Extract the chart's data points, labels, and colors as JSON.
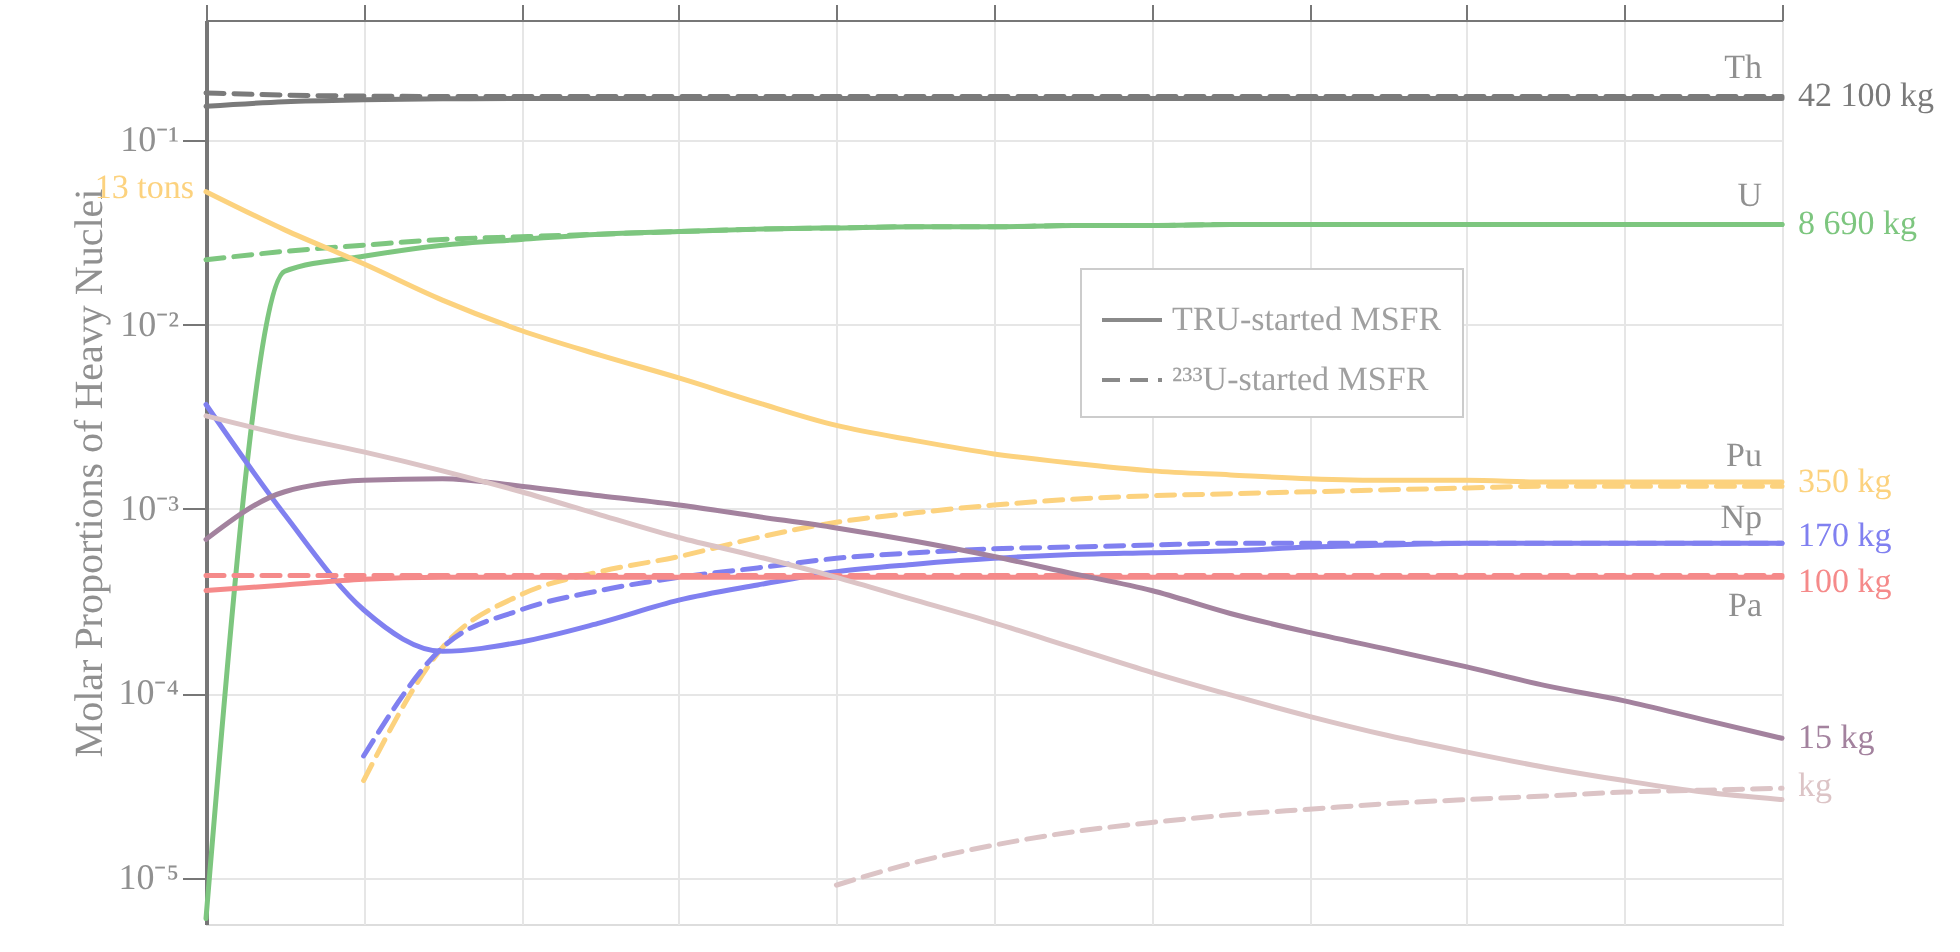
{
  "chart_data": {
    "type": "line",
    "ylabel": "Molar Proportions of Heavy Nuclei",
    "categories": [
      null,
      null,
      null,
      null,
      null,
      null,
      null,
      null,
      null,
      null,
      null,
      null,
      null,
      null,
      null,
      null,
      null,
      null,
      null,
      null,
      null
    ],
    "ylim": [
      5.6e-06,
      0.45
    ],
    "log": "y",
    "yticks": [
      {
        "value": 0.1,
        "label": "10⁻¹"
      },
      {
        "value": 0.01,
        "label": "10⁻²"
      },
      {
        "value": 0.001,
        "label": "10⁻³"
      },
      {
        "value": 0.0001,
        "label": "10⁻⁴"
      },
      {
        "value": 1e-05,
        "label": "10⁻⁵"
      }
    ],
    "tick_labels": "y",
    "grid": true,
    "legend": "right",
    "marker": "none",
    "series": [
      {
        "name": "TRU-started MSFR",
        "color": "#7a7a7a",
        "line_style": "solid",
        "values": [
          0.153,
          0.162,
          0.166,
          0.168,
          0.169,
          0.169,
          0.169,
          0.169,
          0.169,
          0.169,
          0.169,
          0.169,
          0.169,
          0.169,
          0.169,
          0.169,
          0.169,
          0.169,
          0.169,
          0.169,
          0.169
        ]
      },
      {
        "name": "²³³U-started MSFR",
        "color": "#7a7a7a",
        "line_style": "dashed",
        "values": [
          0.181,
          0.176,
          0.174,
          0.173,
          0.173,
          0.173,
          0.173,
          0.173,
          0.173,
          0.173,
          0.173,
          0.173,
          0.173,
          0.173,
          0.173,
          0.173,
          0.173,
          0.173,
          0.173,
          0.173,
          0.173
        ]
      },
      {
        "color": "#7dc67f",
        "line_style": "solid",
        "values": [
          6e-06,
          0.0195,
          0.0235,
          0.027,
          0.029,
          0.031,
          0.032,
          0.033,
          0.0335,
          0.034,
          0.034,
          0.0345,
          0.0345,
          0.035,
          0.035,
          0.035,
          0.035,
          0.035,
          0.035,
          0.035,
          0.035
        ]
      },
      {
        "color": "#7dc67f",
        "line_style": "dashed",
        "values": [
          0.0225,
          0.025,
          0.027,
          0.029,
          0.03,
          0.031,
          0.032,
          0.033,
          0.0335,
          0.034,
          0.034,
          0.0345,
          0.0345,
          0.035,
          0.035,
          0.035,
          0.035,
          0.035,
          0.035,
          0.035,
          0.035
        ]
      },
      {
        "color": "#fcd27e",
        "line_style": "solid",
        "values": [
          0.0527,
          0.0327,
          0.0214,
          0.0136,
          0.0093,
          0.00684,
          0.00514,
          0.00378,
          0.00284,
          0.00235,
          0.00199,
          0.00177,
          0.00161,
          0.00153,
          0.00146,
          0.00143,
          0.00143,
          0.0014,
          0.0014,
          0.0014,
          0.0014
        ]
      },
      {
        "color": "#fcd27e",
        "line_style": "dashed",
        "values": [
          null,
          null,
          3.36e-05,
          0.000177,
          0.000343,
          0.000457,
          0.000552,
          0.0007,
          0.000847,
          0.000953,
          0.00105,
          0.00113,
          0.00118,
          0.00121,
          0.00124,
          0.00127,
          0.0013,
          0.00133,
          0.00133,
          0.00133,
          0.00133
        ]
      },
      {
        "color": "#8080f0",
        "line_style": "solid",
        "values": [
          0.00369,
          0.00093,
          0.000284,
          0.000169,
          0.00019,
          0.000241,
          0.00032,
          0.000387,
          0.000457,
          0.000502,
          0.00054,
          0.000566,
          0.000579,
          0.000593,
          0.000622,
          0.000637,
          0.000652,
          0.000652,
          0.000652,
          0.000652,
          0.000652
        ]
      },
      {
        "color": "#8080f0",
        "line_style": "dashed",
        "values": [
          null,
          null,
          4.57e-05,
          0.000177,
          0.000284,
          0.000361,
          0.000426,
          0.000479,
          0.00054,
          0.000579,
          0.000608,
          0.000622,
          0.000637,
          0.000652,
          0.000652,
          0.000652,
          0.000652,
          0.000652,
          0.000652,
          0.000652,
          0.000652
        ]
      },
      {
        "color": "#f58a8a",
        "line_style": "solid",
        "values": [
          0.000361,
          0.000387,
          0.000416,
          0.000426,
          0.000426,
          0.000426,
          0.000426,
          0.000426,
          0.000426,
          0.000426,
          0.000426,
          0.000426,
          0.000426,
          0.000426,
          0.000426,
          0.000426,
          0.000426,
          0.000426,
          0.000426,
          0.000426,
          0.000426
        ]
      },
      {
        "color": "#f58a8a",
        "line_style": "dashed",
        "values": [
          0.000436,
          0.000436,
          0.000436,
          0.000436,
          0.000436,
          0.000436,
          0.000436,
          0.000436,
          0.000436,
          0.000436,
          0.000436,
          0.000436,
          0.000436,
          0.000436,
          0.000436,
          0.000436,
          0.000436,
          0.000436,
          0.000436,
          0.000436,
          0.000436
        ]
      },
      {
        "color": "#a3829e",
        "line_style": "solid",
        "values": [
          0.000684,
          0.00124,
          0.00143,
          0.00146,
          0.00133,
          0.00118,
          0.00105,
          0.00091,
          0.000789,
          0.000668,
          0.000552,
          0.000446,
          0.000361,
          0.000271,
          0.000214,
          0.000173,
          0.000139,
          0.00011,
          9.1e-05,
          7.2e-05,
          5.7e-05
        ]
      },
      {
        "color": "#dcc4c6",
        "line_style": "solid",
        "values": [
          0.0032,
          0.00252,
          0.00204,
          0.00161,
          0.00124,
          0.00093,
          0.0007,
          0.000552,
          0.000426,
          0.00032,
          0.000241,
          0.000177,
          0.00013,
          9.8e-05,
          7.5e-05,
          5.9e-05,
          4.8e-05,
          3.96e-05,
          3.36e-05,
          2.91e-05,
          2.65e-05
        ]
      },
      {
        "color": "#dcc4c6",
        "line_style": "dashed",
        "values": [
          null,
          null,
          null,
          null,
          null,
          null,
          null,
          null,
          9.1e-06,
          1.21e-05,
          1.5e-05,
          1.77e-05,
          1.99e-05,
          2.19e-05,
          2.35e-05,
          2.52e-05,
          2.65e-05,
          2.77e-05,
          2.91e-05,
          2.98e-05,
          3.05e-05
        ]
      }
    ],
    "annotations": [
      "Th",
      "U",
      "Pu",
      "Np",
      "Pa",
      "42 100 kg",
      "8 690 kg",
      "13 tons",
      "350 kg",
      "170 kg",
      "100 kg",
      "15 kg",
      "kg"
    ]
  }
}
